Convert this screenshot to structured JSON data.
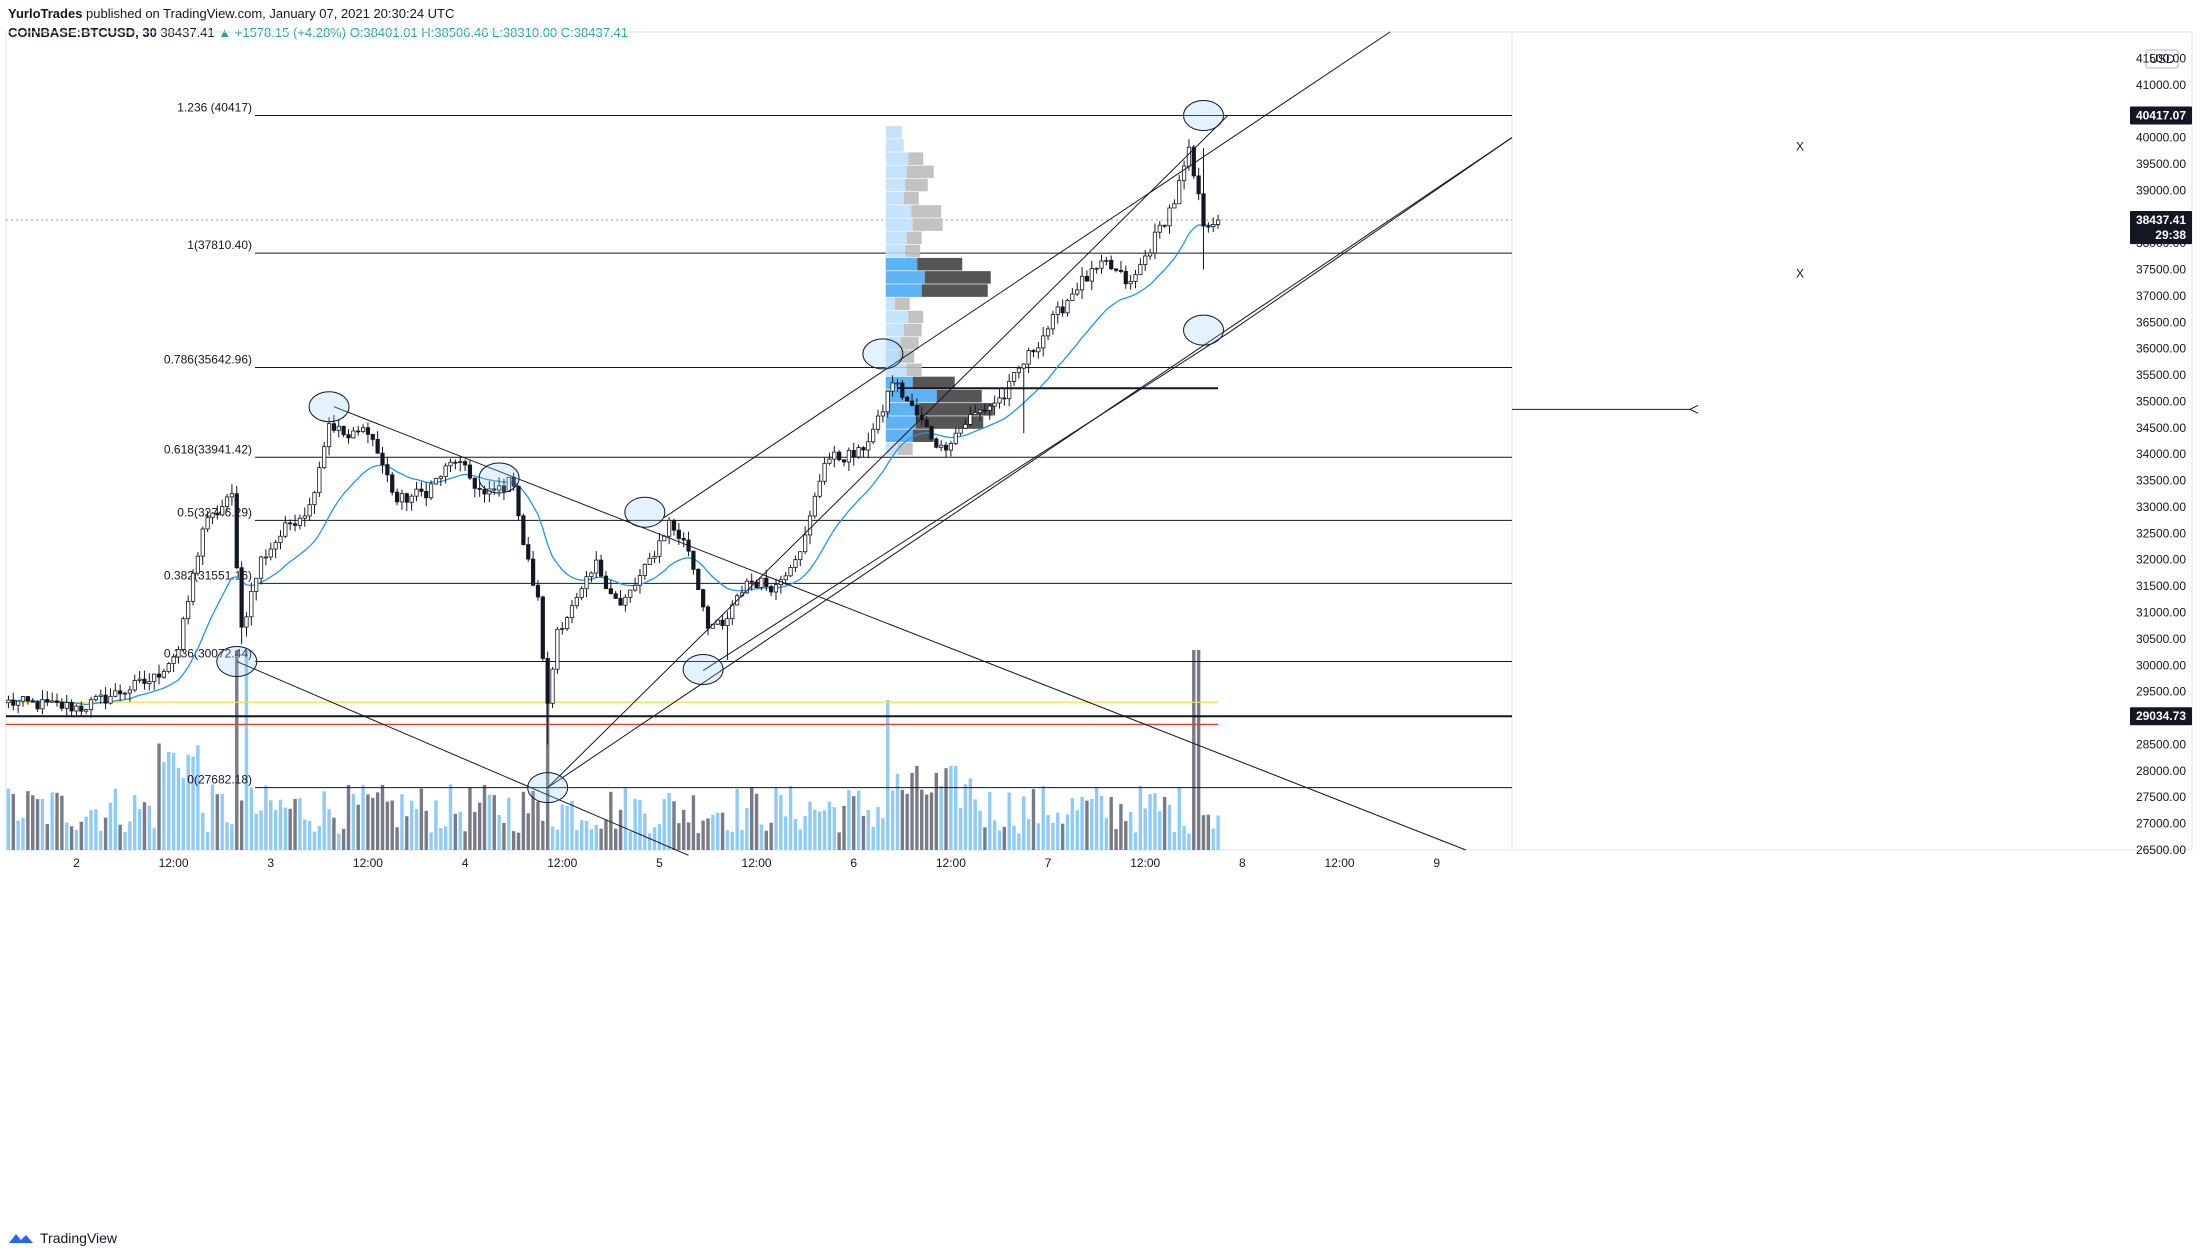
{
  "header": {
    "author": "YurloTrades",
    "published": "published on TradingView.com, January 07, 2021 20:30:24 UTC",
    "symbol": "COINBASE:BTCUSD, 30",
    "last": "38437.41",
    "change": "▲ +1578.15 (+4.28%)",
    "ohlc": "O:38401.01 H:38506.46 L:38310.00 C:38437.41"
  },
  "footer": {
    "brand": "TradingView"
  },
  "colors": {
    "up": "#ffffff",
    "down": "#131722",
    "ema": "#2196f3",
    "volUp": "#90caf9",
    "volDown": "#787b86",
    "yellow": "#f5e146",
    "red": "#e53935"
  },
  "chart_data": {
    "type": "candlestick",
    "currency_label": "USD",
    "ylim": [
      26500,
      42000
    ],
    "xlim": [
      0,
      310
    ],
    "y_ticks": [
      "26500.00",
      "27000.00",
      "27500.00",
      "28000.00",
      "28500.00",
      "29000.00",
      "29500.00",
      "30000.00",
      "30500.00",
      "31000.00",
      "31500.00",
      "32000.00",
      "32500.00",
      "33000.00",
      "33500.00",
      "34000.00",
      "34500.00",
      "35000.00",
      "35500.00",
      "36000.00",
      "36500.00",
      "37000.00",
      "37500.00",
      "38000.00",
      "38500.00",
      "39000.00",
      "39500.00",
      "40000.00",
      "41000.00",
      "41500.00"
    ],
    "x_ticks": [
      {
        "label": "2",
        "bar": 14
      },
      {
        "label": "12:00",
        "bar": 34
      },
      {
        "label": "3",
        "bar": 54
      },
      {
        "label": "12:00",
        "bar": 74
      },
      {
        "label": "4",
        "bar": 94
      },
      {
        "label": "12:00",
        "bar": 114
      },
      {
        "label": "5",
        "bar": 134
      },
      {
        "label": "12:00",
        "bar": 154
      },
      {
        "label": "6",
        "bar": 174
      },
      {
        "label": "12:00",
        "bar": 194
      },
      {
        "label": "7",
        "bar": 214
      },
      {
        "label": "12:00",
        "bar": 234
      },
      {
        "label": "8",
        "bar": 254
      },
      {
        "label": "12:00",
        "bar": 274
      },
      {
        "label": "9",
        "bar": 294
      }
    ],
    "price_badges": [
      {
        "label": "40417.07",
        "value": 40417.07,
        "dark": true
      },
      {
        "label": "38437.41",
        "value": 38437.41,
        "dark": true
      },
      {
        "label": "29:38",
        "value": 38150,
        "dark": true
      },
      {
        "label": "29034.73",
        "value": 29034.73,
        "dark": true
      }
    ],
    "fib_levels": [
      {
        "label": "1.236 (40417)",
        "value": 40417
      },
      {
        "label": "1(37810.40)",
        "value": 37810.4
      },
      {
        "label": "0.786(35642.96)",
        "value": 35642.96
      },
      {
        "label": "0.618(33941.42)",
        "value": 33941.42
      },
      {
        "label": "0.5(32746.29)",
        "value": 32746.29
      },
      {
        "label": "0.382(31551.16)",
        "value": 31551.16
      },
      {
        "label": "0.236(30072.44)",
        "value": 30072.44
      },
      {
        "label": "0(27682.18)",
        "value": 27682.18
      }
    ],
    "horizontal_lines": [
      {
        "value": 29034.73,
        "color": "#131722"
      },
      {
        "value": 29300,
        "color": "#f5e146"
      },
      {
        "value": 28880,
        "color": "#e53935"
      }
    ],
    "last_price": 38437.41,
    "markers": [
      "X",
      "X"
    ],
    "anchors": [
      {
        "bar": 0,
        "price": 29300
      },
      {
        "bar": 15,
        "price": 29200
      },
      {
        "bar": 30,
        "price": 29750
      },
      {
        "bar": 35,
        "price": 30300
      },
      {
        "bar": 40,
        "price": 32600
      },
      {
        "bar": 46,
        "price": 33200
      },
      {
        "bar": 48,
        "price": 30700
      },
      {
        "bar": 52,
        "price": 32000
      },
      {
        "bar": 58,
        "price": 32700
      },
      {
        "bar": 62,
        "price": 33000
      },
      {
        "bar": 66,
        "price": 34600
      },
      {
        "bar": 70,
        "price": 34300
      },
      {
        "bar": 74,
        "price": 34500
      },
      {
        "bar": 80,
        "price": 33100
      },
      {
        "bar": 86,
        "price": 33300
      },
      {
        "bar": 92,
        "price": 33900
      },
      {
        "bar": 98,
        "price": 33200
      },
      {
        "bar": 104,
        "price": 33500
      },
      {
        "bar": 106,
        "price": 32300
      },
      {
        "bar": 109,
        "price": 31200
      },
      {
        "bar": 111,
        "price": 29200
      },
      {
        "bar": 113,
        "price": 30700
      },
      {
        "bar": 117,
        "price": 31200
      },
      {
        "bar": 121,
        "price": 31900
      },
      {
        "bar": 126,
        "price": 31100
      },
      {
        "bar": 131,
        "price": 31800
      },
      {
        "bar": 136,
        "price": 32700
      },
      {
        "bar": 140,
        "price": 32200
      },
      {
        "bar": 144,
        "price": 30800
      },
      {
        "bar": 147,
        "price": 30700
      },
      {
        "bar": 152,
        "price": 31600
      },
      {
        "bar": 158,
        "price": 31500
      },
      {
        "bar": 164,
        "price": 32400
      },
      {
        "bar": 168,
        "price": 33900
      },
      {
        "bar": 175,
        "price": 34000
      },
      {
        "bar": 179,
        "price": 34600
      },
      {
        "bar": 182,
        "price": 35400
      },
      {
        "bar": 188,
        "price": 34600
      },
      {
        "bar": 192,
        "price": 34100
      },
      {
        "bar": 198,
        "price": 34700
      },
      {
        "bar": 205,
        "price": 35100
      },
      {
        "bar": 208,
        "price": 35600
      },
      {
        "bar": 214,
        "price": 36400
      },
      {
        "bar": 220,
        "price": 37200
      },
      {
        "bar": 226,
        "price": 37600
      },
      {
        "bar": 231,
        "price": 37200
      },
      {
        "bar": 236,
        "price": 38100
      },
      {
        "bar": 240,
        "price": 38800
      },
      {
        "bar": 243,
        "price": 39700
      },
      {
        "bar": 246,
        "price": 38400
      },
      {
        "bar": 249,
        "price": 38437
      }
    ],
    "wick_events": [
      {
        "bar": 48,
        "low": 30400
      },
      {
        "bar": 111,
        "low": 28500
      },
      {
        "bar": 148,
        "low": 30100
      },
      {
        "bar": 246,
        "low": 37500,
        "high": 39800
      },
      {
        "bar": 209,
        "low": 34400
      }
    ],
    "volume_spikes": [
      {
        "bar": 47,
        "value": 1.0
      },
      {
        "bar": 49,
        "value": 1.0
      },
      {
        "bar": 111,
        "value": 0.8
      },
      {
        "bar": 181,
        "value": 0.75
      },
      {
        "bar": 244,
        "value": 1.0
      },
      {
        "bar": 245,
        "value": 1.0
      }
    ],
    "volume_profile": [
      {
        "price": 40100,
        "blue": 0.11,
        "gray": 0.0
      },
      {
        "price": 39850,
        "blue": 0.12,
        "gray": 0.0
      },
      {
        "price": 39600,
        "blue": 0.15,
        "gray": 0.1
      },
      {
        "price": 39350,
        "blue": 0.14,
        "gray": 0.18
      },
      {
        "price": 39100,
        "blue": 0.13,
        "gray": 0.15
      },
      {
        "price": 38850,
        "blue": 0.12,
        "gray": 0.1
      },
      {
        "price": 38600,
        "blue": 0.17,
        "gray": 0.2
      },
      {
        "price": 38350,
        "blue": 0.18,
        "gray": 0.2
      },
      {
        "price": 38100,
        "blue": 0.14,
        "gray": 0.1
      },
      {
        "price": 37850,
        "blue": 0.13,
        "gray": 0.1
      },
      {
        "price": 37600,
        "blue": 0.21,
        "gray": 0.3
      },
      {
        "price": 37350,
        "blue": 0.26,
        "gray": 0.44
      },
      {
        "price": 37100,
        "blue": 0.24,
        "gray": 0.44
      },
      {
        "price": 36850,
        "blue": 0.06,
        "gray": 0.1
      },
      {
        "price": 36600,
        "blue": 0.15,
        "gray": 0.1
      },
      {
        "price": 36350,
        "blue": 0.12,
        "gray": 0.12
      },
      {
        "price": 36100,
        "blue": 0.1,
        "gray": 0.12
      },
      {
        "price": 35850,
        "blue": 0.09,
        "gray": 0.1
      },
      {
        "price": 35600,
        "blue": 0.14,
        "gray": 0.1
      },
      {
        "price": 35350,
        "blue": 0.18,
        "gray": 0.28
      },
      {
        "price": 35100,
        "blue": 0.34,
        "gray": 0.3
      },
      {
        "price": 34850,
        "blue": 0.22,
        "gray": 0.5
      },
      {
        "price": 34600,
        "blue": 0.2,
        "gray": 0.45
      },
      {
        "price": 34350,
        "blue": 0.18,
        "gray": 0.14
      },
      {
        "price": 34100,
        "blue": 0.08,
        "gray": 0.1
      }
    ]
  }
}
